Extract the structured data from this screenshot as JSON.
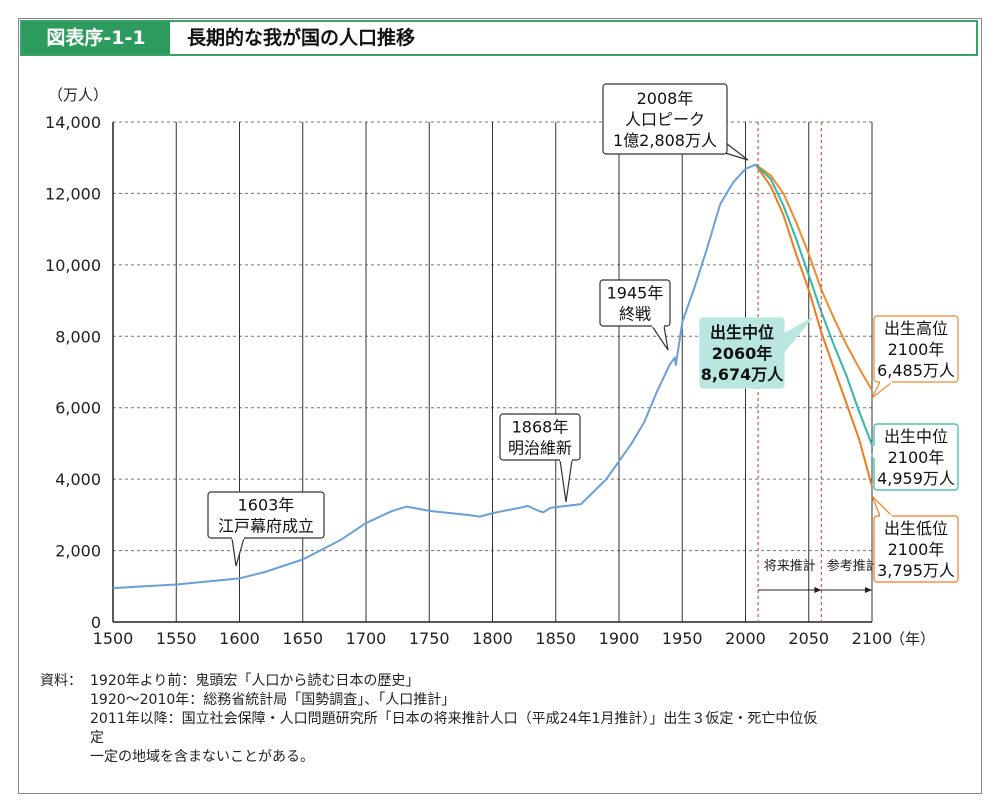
{
  "header": {
    "tag": "図表序-1-1",
    "title": "長期的な我が国の人口推移"
  },
  "colors": {
    "historical": "#6aa0d8",
    "high": "#f08a2c",
    "mid": "#2fb8a8",
    "low": "#f07a20",
    "header_green": "#2e9b5e",
    "note_fill_mid": "#b9e6df",
    "divider": "#e05a4a"
  },
  "chart_data": {
    "type": "line",
    "title": "",
    "ylabel": "（万人）",
    "xlabel": "（年）",
    "xlim": [
      1500,
      2100
    ],
    "ylim": [
      0,
      14000
    ],
    "x_ticks": [
      "1500",
      "1550",
      "1600",
      "1650",
      "1700",
      "1750",
      "1800",
      "1850",
      "1900",
      "1950",
      "2000",
      "2050",
      "2100"
    ],
    "y_ticks": [
      "0",
      "2,000",
      "4,000",
      "6,000",
      "8,000",
      "10,000",
      "12,000",
      "14,000"
    ],
    "grid": "vertical solid, horizontal dashed",
    "series": [
      {
        "key": "historical",
        "x": [
          1500,
          1550,
          1600,
          1620,
          1650,
          1680,
          1700,
          1720,
          1732,
          1750,
          1780,
          1790,
          1800,
          1822,
          1828,
          1834,
          1840,
          1846,
          1870,
          1880,
          1890,
          1900,
          1910,
          1920,
          1930,
          1940,
          1944,
          1945,
          1950,
          1960,
          1970,
          1980,
          1990,
          2000,
          2008
        ],
        "y": [
          950,
          1050,
          1220,
          1400,
          1750,
          2300,
          2770,
          3100,
          3230,
          3110,
          3000,
          2950,
          3050,
          3200,
          3250,
          3150,
          3070,
          3200,
          3300,
          3650,
          4000,
          4500,
          5000,
          5600,
          6450,
          7200,
          7400,
          7200,
          8400,
          9400,
          10500,
          11700,
          12300,
          12690,
          12808
        ]
      },
      {
        "key": "high",
        "x": [
          2008,
          2020,
          2030,
          2040,
          2050,
          2060,
          2070,
          2080,
          2090,
          2100
        ],
        "y": [
          12808,
          12500,
          12000,
          11200,
          10300,
          9300,
          8500,
          7750,
          7100,
          6485
        ]
      },
      {
        "key": "mid",
        "x": [
          2008,
          2020,
          2030,
          2040,
          2050,
          2060,
          2070,
          2080,
          2090,
          2100
        ],
        "y": [
          12808,
          12400,
          11660,
          10730,
          9710,
          8674,
          7750,
          6880,
          5880,
          4959
        ]
      },
      {
        "key": "low",
        "x": [
          2008,
          2020,
          2030,
          2040,
          2050,
          2060,
          2070,
          2080,
          2090,
          2100
        ],
        "y": [
          12808,
          12200,
          11400,
          10300,
          9300,
          8100,
          7100,
          6100,
          5100,
          3795
        ]
      }
    ],
    "annotations": [
      {
        "key": "a1603",
        "lines": [
          "1603年",
          "江戸幕府成立"
        ]
      },
      {
        "key": "a1868",
        "lines": [
          "1868年",
          "明治維新"
        ]
      },
      {
        "key": "a1945",
        "lines": [
          "1945年",
          "終戦"
        ]
      },
      {
        "key": "a2008",
        "lines": [
          "2008年",
          "人口ピーク",
          "1億2,808万人"
        ]
      },
      {
        "key": "a2060",
        "lines": [
          "出生中位",
          "2060年",
          "8,674万人"
        ]
      },
      {
        "key": "aHigh",
        "lines": [
          "出生高位",
          "2100年",
          "6,485万人"
        ]
      },
      {
        "key": "aMid",
        "lines": [
          "出生中位",
          "2100年",
          "4,959万人"
        ]
      },
      {
        "key": "aLow",
        "lines": [
          "出生低位",
          "2100年",
          "3,795万人"
        ]
      }
    ],
    "projection_labels": {
      "future": "将来推計",
      "reference": "参考推計"
    },
    "projection_breaks": [
      2010,
      2060
    ]
  },
  "notes": {
    "lead": "資料：",
    "lines": [
      "1920年より前：鬼頭宏「人口から読む日本の歴史」",
      "1920～2010年：総務省統計局「国勢調査」、「人口推計」",
      "2011年以降：国立社会保障・人口問題研究所「日本の将来推計人口（平成24年1月推計）」出生３仮定・死亡中位仮"
    ],
    "cont_lines": [
      "定",
      "一定の地域を含まないことがある。"
    ]
  }
}
